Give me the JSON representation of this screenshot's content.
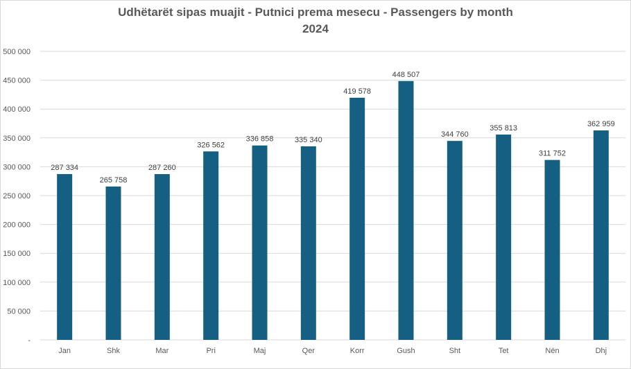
{
  "chart_data": {
    "type": "bar",
    "title": "Udhëtarët sipas muajit - Putnici prema mesecu - Passengers by month",
    "subtitle": "2024",
    "xlabel": "",
    "ylabel": "",
    "categories": [
      "Jan",
      "Shk",
      "Mar",
      "Pri",
      "Maj",
      "Qer",
      "Korr",
      "Gush",
      "Sht",
      "Tet",
      "Nën",
      "Dhj"
    ],
    "values": [
      287334,
      265758,
      287260,
      326562,
      336858,
      335340,
      419578,
      448507,
      344760,
      355813,
      311752,
      362959
    ],
    "value_labels": [
      "287 334",
      "265 758",
      "287 260",
      "326 562",
      "336 858",
      "335 340",
      "419 578",
      "448 507",
      "344 760",
      "355 813",
      "311 752",
      "362 959"
    ],
    "ylim": [
      0,
      500000
    ],
    "yticks": [
      0,
      50000,
      100000,
      150000,
      200000,
      250000,
      300000,
      350000,
      400000,
      450000,
      500000
    ],
    "ytick_labels": [
      "-",
      "50 000",
      "100 000",
      "150 000",
      "200 000",
      "250 000",
      "300 000",
      "350 000",
      "400 000",
      "450 000",
      "500 000"
    ],
    "grid": true,
    "legend": "none",
    "colors": {
      "bar": "#156082",
      "grid": "#d9d9d9",
      "text": "#595959",
      "title": "#595959"
    }
  }
}
